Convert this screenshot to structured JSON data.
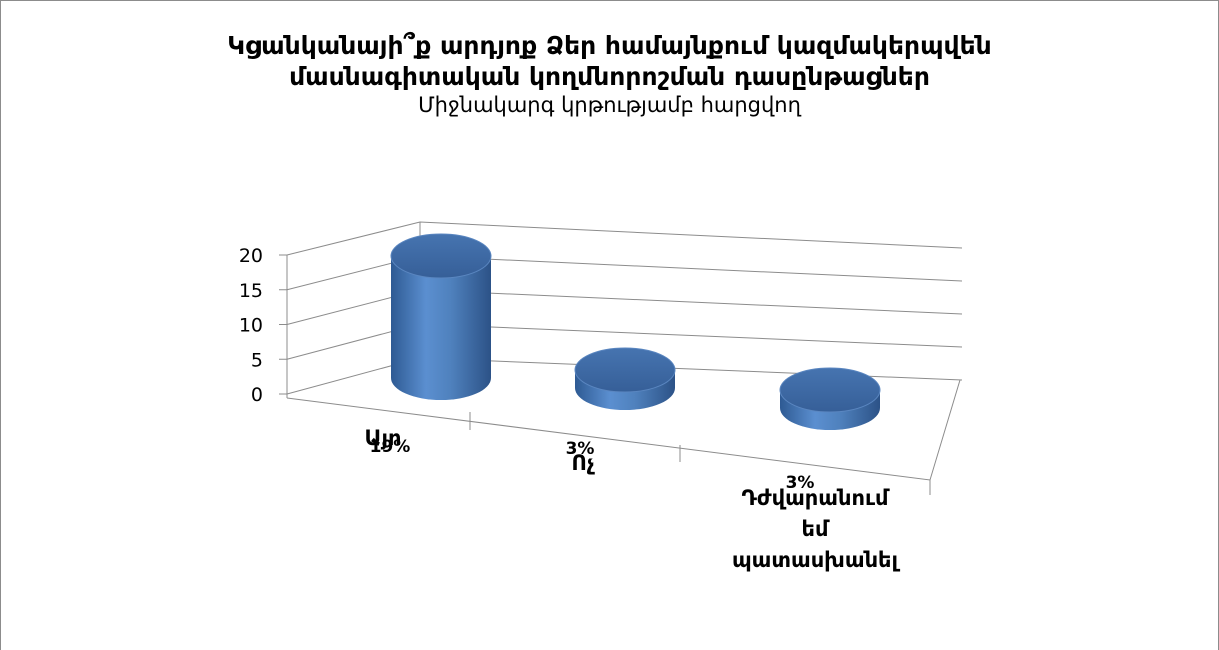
{
  "chart_data": {
    "type": "bar",
    "title_line1": "Կցանկանայի՞ք արդյոք Ձեր համայնքում կազմակերպվեն",
    "title_line2": "մասնագիտական կողմնորոշման դասընթացներ",
    "subtitle": "Միջնակարգ կրթությամբ հարցվող",
    "categories": [
      "Այո",
      "Ոչ",
      "Դժվարանում եմ պատասխանել"
    ],
    "category_lines": [
      [
        "Այո"
      ],
      [
        "Ոչ"
      ],
      [
        "Դժվարանում",
        "եմ",
        "պատասխանել"
      ]
    ],
    "values": [
      20,
      1,
      1
    ],
    "data_labels": [
      "19%",
      "3%",
      "3%"
    ],
    "y_ticks": [
      "0",
      "5",
      "10",
      "15",
      "20"
    ],
    "ylim": [
      0,
      20
    ],
    "grid": true,
    "legend": "none",
    "colors": {
      "bar_side": "#4f81bd",
      "bar_top": "#3d6aa8",
      "grid": "#8c8c8c"
    }
  }
}
